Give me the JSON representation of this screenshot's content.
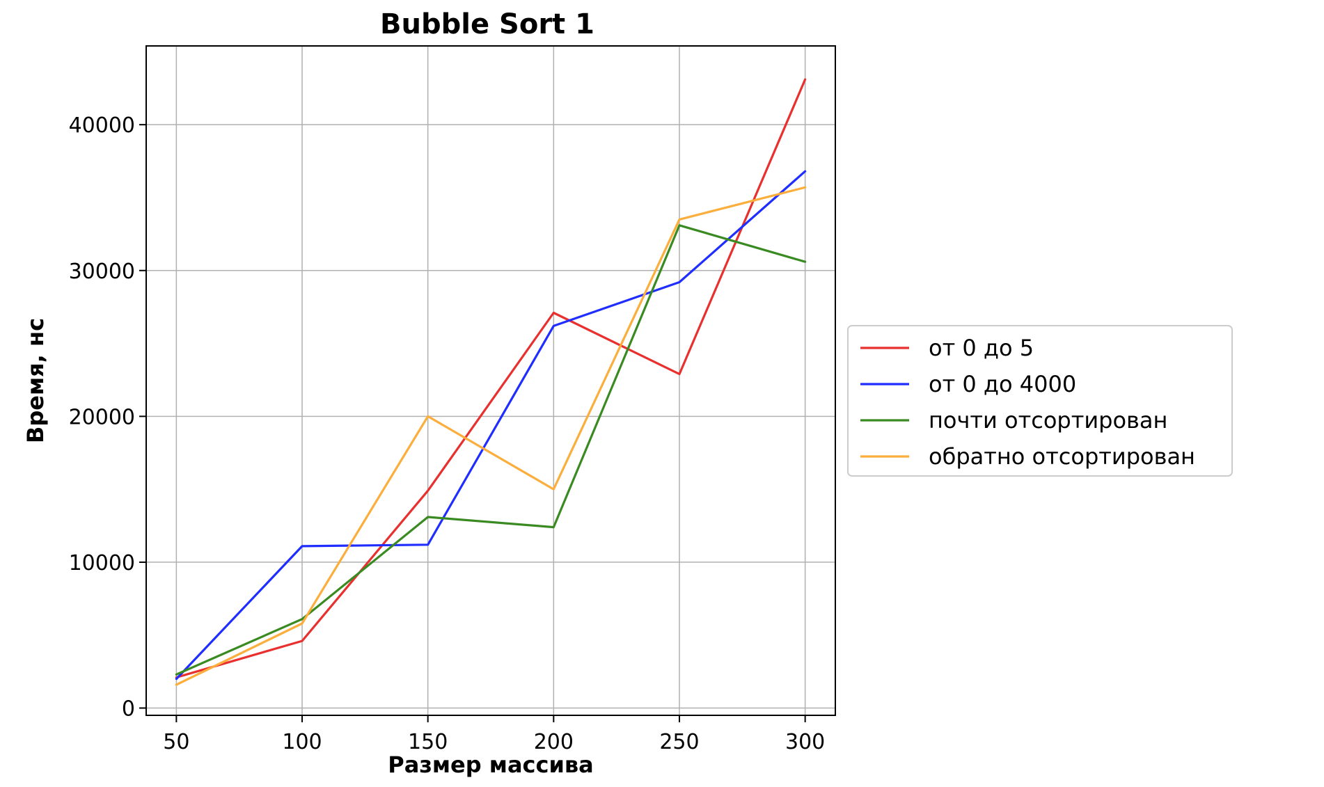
{
  "chart_data": {
    "type": "line",
    "title": "Bubble Sort 1",
    "xlabel": "Размер массива",
    "ylabel": "Время, нс",
    "x": [
      50,
      100,
      150,
      200,
      250,
      300
    ],
    "xlim": [
      38,
      312
    ],
    "ylim": [
      -500,
      45400
    ],
    "xticks": [
      "50",
      "100",
      "150",
      "200",
      "250",
      "300"
    ],
    "yticks": [
      "0",
      "10000",
      "20000",
      "30000",
      "40000"
    ],
    "ytick_values": [
      0,
      10000,
      20000,
      30000,
      40000
    ],
    "grid": true,
    "legend_position": "right-center, outside plot",
    "series": [
      {
        "name": "от 0 до 5",
        "color": "#e8302f",
        "values": [
          2100,
          4600,
          14900,
          27100,
          22900,
          43100
        ]
      },
      {
        "name": "от 0 до 4000",
        "color": "#1f2eff",
        "values": [
          2000,
          11100,
          11200,
          26200,
          29200,
          36800
        ]
      },
      {
        "name": "почти отсортирован",
        "color": "#3a8a22",
        "values": [
          2300,
          6100,
          13100,
          12400,
          33100,
          30600
        ]
      },
      {
        "name": "обратно отсортирован",
        "color": "#fbae3c",
        "values": [
          1600,
          5800,
          20000,
          15000,
          33500,
          35700
        ]
      }
    ]
  }
}
